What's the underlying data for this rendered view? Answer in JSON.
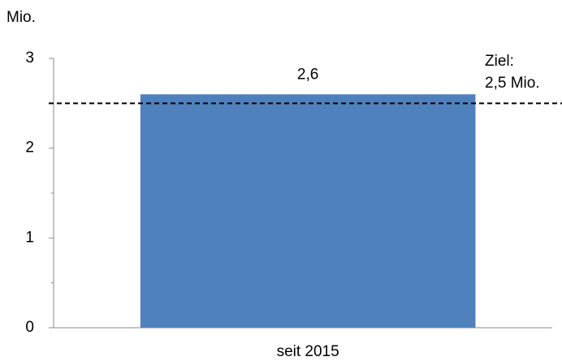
{
  "chart_data": {
    "type": "bar",
    "y_label": "Mio.",
    "categories": [
      "seit 2015"
    ],
    "values": [
      2.6
    ],
    "value_labels": [
      "2,6"
    ],
    "color": "#4f81bd",
    "ylim": [
      0,
      3
    ],
    "yticks": [
      0,
      1,
      2,
      3
    ],
    "minor_yticks": [
      0.5,
      1.5,
      2.5
    ],
    "target_line": 2.5,
    "annotations": [
      "Ziel:",
      "2,5 Mio."
    ]
  }
}
